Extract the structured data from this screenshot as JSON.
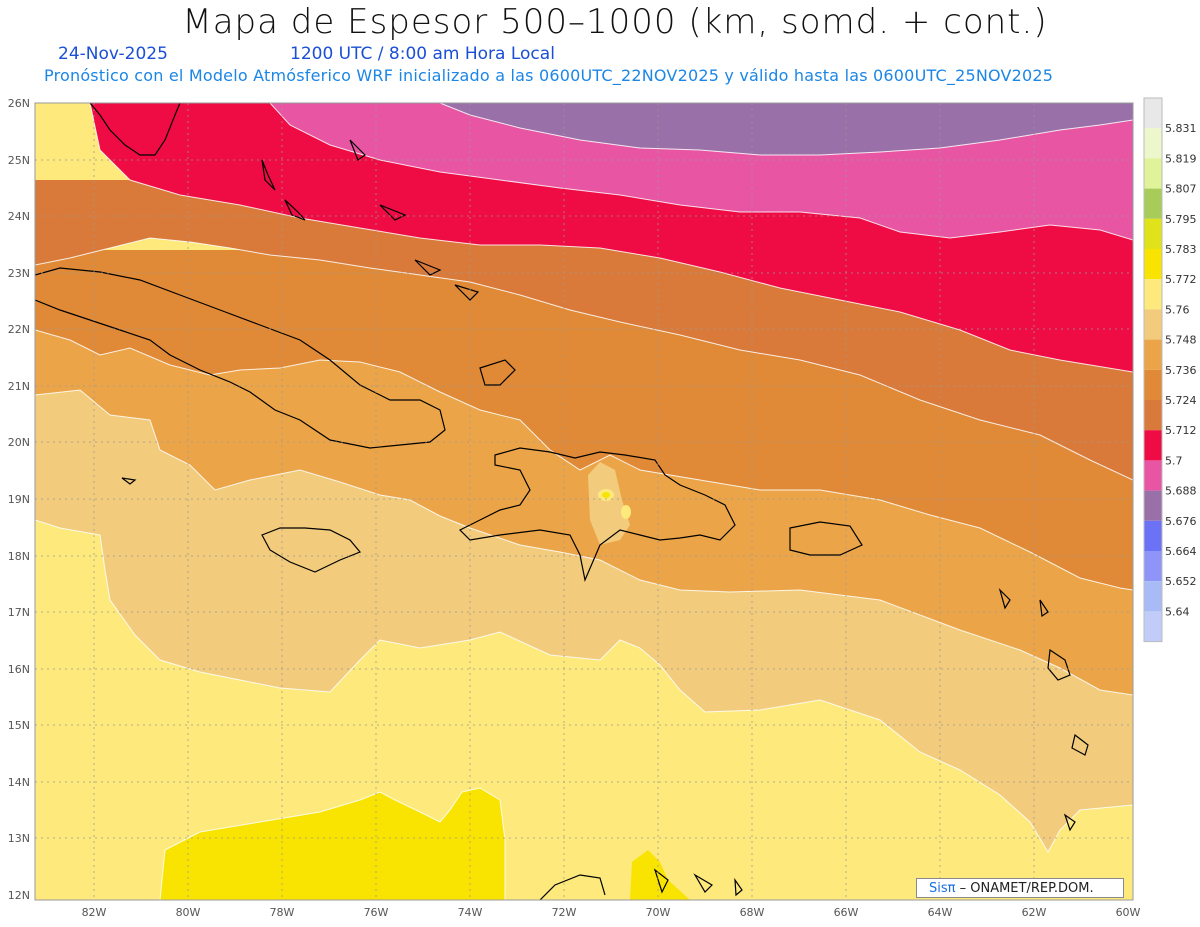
{
  "header": {
    "title": "Mapa de Espesor 500–1000 (km, somd. + cont.)",
    "date": "24-Nov-2025",
    "time": "1200 UTC / 8:00 am Hora Local",
    "subtitle": "Pronóstico con el Modelo Atmósferico WRF inicializado a las 0600UTC_22NOV2025 y válido hasta las  0600UTC_25NOV2025"
  },
  "map": {
    "lat_labels": [
      "26N",
      "25N",
      "24N",
      "23N",
      "22N",
      "21N",
      "20N",
      "19N",
      "18N",
      "17N",
      "16N",
      "15N",
      "14N",
      "13N",
      "12N"
    ],
    "lon_labels": [
      "82W",
      "80W",
      "78W",
      "76W",
      "74W",
      "72W",
      "70W",
      "68W",
      "66W",
      "64W",
      "62W",
      "60W"
    ]
  },
  "legend": {
    "labels": [
      "5.831",
      "5.819",
      "5.807",
      "5.795",
      "5.783",
      "5.772",
      "5.76",
      "5.748",
      "5.736",
      "5.724",
      "5.712",
      "5.7",
      "5.688",
      "5.676",
      "5.664",
      "5.652",
      "5.64"
    ],
    "colors": [
      "#e8e8e8",
      "#eef6cc",
      "#e0f29a",
      "#a8cc5a",
      "#e0e21a",
      "#f8e400",
      "#fde97c",
      "#f2cc7c",
      "#eba548",
      "#e08a38",
      "#d97a3b",
      "#ef0b44",
      "#e856a3",
      "#9971a8",
      "#6b72f5",
      "#8f94f8",
      "#a9bbf7",
      "#c2ccf8"
    ]
  },
  "credit": {
    "brand": "Sisπ",
    "text": " – ONAMET/REP.DOM."
  }
}
